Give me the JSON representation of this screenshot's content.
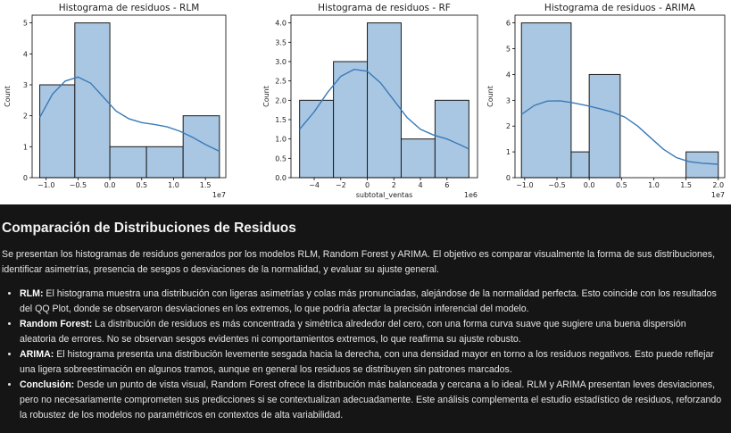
{
  "chart_data": [
    {
      "type": "bar",
      "subtype": "histogram_with_kde",
      "title": "Histograma de residuos - RLM",
      "ylabel": "Count",
      "xlabel": "",
      "x_offset_text": "1e7",
      "bins": [
        [
          -1.1,
          -0.55
        ],
        [
          -0.55,
          0.0
        ],
        [
          0.0,
          0.575
        ],
        [
          0.575,
          1.15
        ],
        [
          1.15,
          1.72
        ]
      ],
      "values": [
        3,
        5,
        1,
        1,
        2
      ],
      "xlim": [
        -1.22,
        1.82
      ],
      "ylim": [
        0,
        5.25
      ],
      "xticks": [
        -1.0,
        -0.5,
        0.0,
        0.5,
        1.0,
        1.5
      ],
      "xtick_labels": [
        "−1.0",
        "−0.5",
        "0.0",
        "0.5",
        "1.0",
        "1.5"
      ],
      "yticks": [
        0,
        1,
        2,
        3,
        4,
        5
      ],
      "ytick_labels": [
        "0",
        "1",
        "2",
        "3",
        "4",
        "5"
      ],
      "kde": [
        [
          -1.1,
          1.95
        ],
        [
          -0.9,
          2.7
        ],
        [
          -0.7,
          3.12
        ],
        [
          -0.5,
          3.25
        ],
        [
          -0.3,
          3.05
        ],
        [
          -0.1,
          2.6
        ],
        [
          0.1,
          2.15
        ],
        [
          0.3,
          1.9
        ],
        [
          0.5,
          1.78
        ],
        [
          0.7,
          1.72
        ],
        [
          0.9,
          1.64
        ],
        [
          1.1,
          1.5
        ],
        [
          1.3,
          1.3
        ],
        [
          1.5,
          1.07
        ],
        [
          1.72,
          0.85
        ]
      ]
    },
    {
      "type": "bar",
      "subtype": "histogram_with_kde",
      "title": "Histograma de residuos - RF",
      "ylabel": "Count",
      "xlabel": "subtotal_ventas",
      "x_offset_text": "1e6",
      "bins": [
        [
          -5.1,
          -2.55
        ],
        [
          -2.55,
          0.0
        ],
        [
          0.0,
          2.55
        ],
        [
          2.55,
          5.1
        ],
        [
          5.1,
          7.65
        ]
      ],
      "values": [
        2,
        3,
        4,
        1,
        2
      ],
      "xlim": [
        -5.75,
        8.3
      ],
      "ylim": [
        0,
        4.2
      ],
      "xticks": [
        -4,
        -2,
        0,
        2,
        4,
        6
      ],
      "xtick_labels": [
        "−4",
        "−2",
        "0",
        "2",
        "4",
        "6"
      ],
      "yticks": [
        0.0,
        0.5,
        1.0,
        1.5,
        2.0,
        2.5,
        3.0,
        3.5,
        4.0
      ],
      "ytick_labels": [
        "0.0",
        "0.5",
        "1.0",
        "1.5",
        "2.0",
        "2.5",
        "3.0",
        "3.5",
        "4.0"
      ],
      "kde": [
        [
          -5.1,
          1.25
        ],
        [
          -4.0,
          1.7
        ],
        [
          -3.0,
          2.2
        ],
        [
          -2.0,
          2.62
        ],
        [
          -1.0,
          2.8
        ],
        [
          0.0,
          2.75
        ],
        [
          1.0,
          2.45
        ],
        [
          2.0,
          2.0
        ],
        [
          3.0,
          1.55
        ],
        [
          4.0,
          1.25
        ],
        [
          5.0,
          1.1
        ],
        [
          6.0,
          1.0
        ],
        [
          7.0,
          0.85
        ],
        [
          7.65,
          0.74
        ]
      ]
    },
    {
      "type": "bar",
      "subtype": "histogram_with_kde",
      "title": "Histograma de residuos - ARIMA",
      "ylabel": "Count",
      "xlabel": "",
      "x_offset_text": "1e7",
      "bins": [
        [
          -1.05,
          -0.28
        ],
        [
          -0.28,
          0.0
        ],
        [
          0.0,
          0.48
        ],
        [
          0.48,
          1.5
        ],
        [
          1.5,
          2.0
        ]
      ],
      "values": [
        6,
        1,
        4,
        0,
        1
      ],
      "xlim": [
        -1.15,
        2.1
      ],
      "ylim": [
        0,
        6.3
      ],
      "xticks": [
        -1.0,
        -0.5,
        0.0,
        0.5,
        1.0,
        1.5,
        2.0
      ],
      "xtick_labels": [
        "−1.0",
        "−0.5",
        "0.0",
        "0.5",
        "1.0",
        "1.5",
        "2.0"
      ],
      "yticks": [
        0,
        1,
        2,
        3,
        4,
        5,
        6
      ],
      "ytick_labels": [
        "0",
        "1",
        "2",
        "3",
        "4",
        "5",
        "6"
      ],
      "kde": [
        [
          -1.05,
          2.45
        ],
        [
          -0.85,
          2.8
        ],
        [
          -0.65,
          2.97
        ],
        [
          -0.45,
          2.98
        ],
        [
          -0.25,
          2.9
        ],
        [
          -0.05,
          2.8
        ],
        [
          0.15,
          2.68
        ],
        [
          0.35,
          2.55
        ],
        [
          0.55,
          2.35
        ],
        [
          0.75,
          2.0
        ],
        [
          0.95,
          1.55
        ],
        [
          1.15,
          1.1
        ],
        [
          1.35,
          0.78
        ],
        [
          1.55,
          0.62
        ],
        [
          1.75,
          0.56
        ],
        [
          2.0,
          0.52
        ]
      ]
    }
  ],
  "colors": {
    "bar_fill": "#a9c7e2",
    "bar_edge": "#1a1a1a",
    "kde_line": "#3a7ab8",
    "panel_bg": "#151515",
    "text": "#e4e4e4"
  },
  "panel": {
    "heading": "Comparación de Distribuciones de Residuos",
    "intro": "Se presentan los histogramas de residuos generados por los modelos RLM, Random Forest y ARIMA. El objetivo es comparar visualmente la forma de sus distribuciones, identificar asimetrías, presencia de sesgos o desviaciones de la normalidad, y evaluar su ajuste general.",
    "items": [
      {
        "label": "RLM:",
        "text": " El histograma muestra una distribución con ligeras asimetrías y colas más pronunciadas, alejándose de la normalidad perfecta. Esto coincide con los resultados del QQ Plot, donde se observaron desviaciones en los extremos, lo que podría afectar la precisión inferencial del modelo."
      },
      {
        "label": "Random Forest:",
        "text": " La distribución de residuos es más concentrada y simétrica alrededor del cero, con una forma curva suave que sugiere una buena dispersión aleatoria de errores. No se observan sesgos evidentes ni comportamientos extremos, lo que reafirma su ajuste robusto."
      },
      {
        "label": "ARIMA:",
        "text": " El histograma presenta una distribución levemente sesgada hacia la derecha, con una densidad mayor en torno a los residuos negativos. Esto puede reflejar una ligera sobreestimación en algunos tramos, aunque en general los residuos se distribuyen sin patrones marcados."
      },
      {
        "label": "Conclusión:",
        "text": " Desde un punto de vista visual, Random Forest ofrece la distribución más balanceada y cercana a lo ideal. RLM y ARIMA presentan leves desviaciones, pero no necesariamente comprometen sus predicciones si se contextualizan adecuadamente. Este análisis complementa el estudio estadístico de residuos, reforzando la robustez de los modelos no paramétricos en contextos de alta variabilidad."
      }
    ]
  }
}
